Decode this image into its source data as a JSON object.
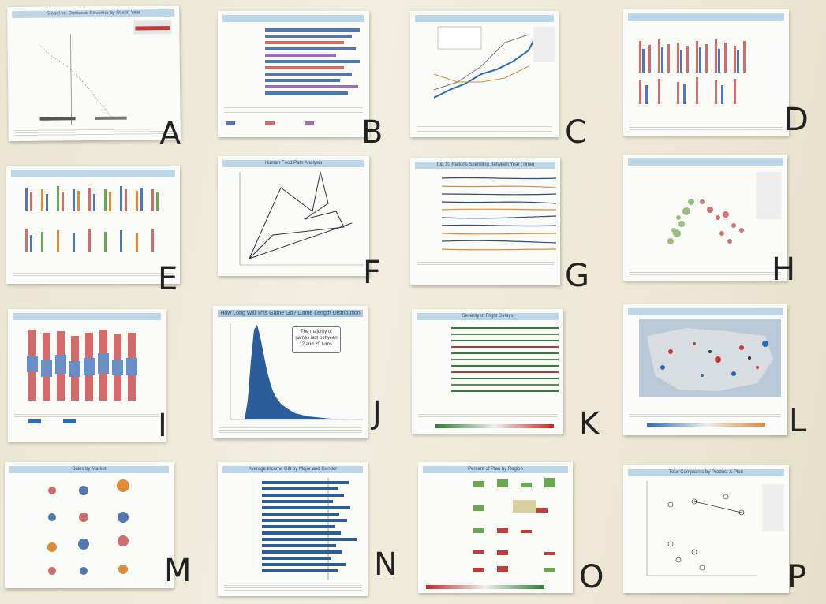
{
  "scene": "wall of printed chart sheets",
  "sheets": [
    {
      "letter": "A",
      "title": "Global vs. Domestic Revenue by Studio Year"
    },
    {
      "letter": "B",
      "title": ""
    },
    {
      "letter": "C",
      "title": ""
    },
    {
      "letter": "D",
      "title": ""
    },
    {
      "letter": "E",
      "title": ""
    },
    {
      "letter": "F",
      "title": "Human Food Path Analysis"
    },
    {
      "letter": "G",
      "title": "Top 10 Nations Spending Between Year (Time)"
    },
    {
      "letter": "H",
      "title": ""
    },
    {
      "letter": "I",
      "title": ""
    },
    {
      "letter": "J",
      "title": "How Long Will This Game Go? Game Length Distribution"
    },
    {
      "letter": "K",
      "title": "Severity of Flight Delays"
    },
    {
      "letter": "L",
      "title": ""
    },
    {
      "letter": "M",
      "title": "Sales by Market"
    },
    {
      "letter": "N",
      "title": "Average Income Gift by Major and Gender"
    },
    {
      "letter": "O",
      "title": "Percent of Plan by Region"
    },
    {
      "letter": "P",
      "title": "Total Complaints by Product & Plan"
    }
  ],
  "annotations": {
    "J": "The majority of games last between 12 and 20 turns."
  }
}
